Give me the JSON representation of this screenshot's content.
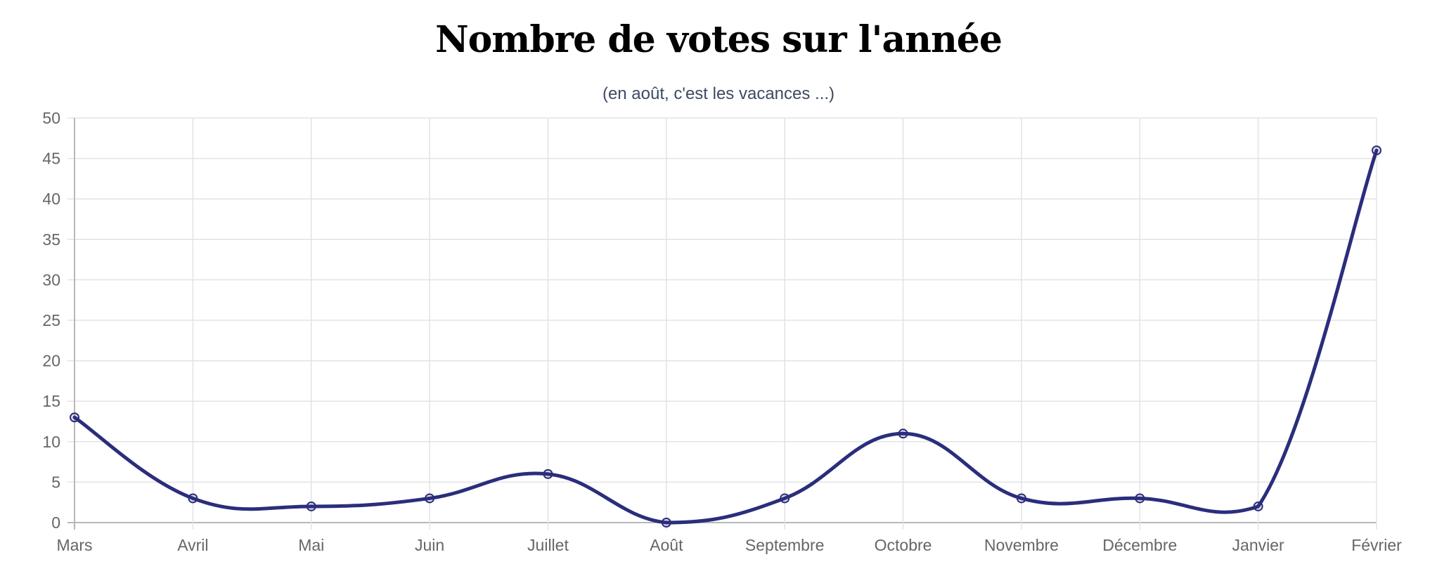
{
  "chart_data": {
    "type": "line",
    "title": "Nombre de votes sur l'année",
    "subtitle": "(en août, c'est les vacances ...)",
    "categories": [
      "Mars",
      "Avril",
      "Mai",
      "Juin",
      "Juillet",
      "Août",
      "Septembre",
      "Octobre",
      "Novembre",
      "Décembre",
      "Janvier",
      "Février"
    ],
    "series": [
      {
        "values": [
          13,
          3,
          2,
          3,
          6,
          0,
          3,
          11,
          3,
          3,
          2,
          46
        ]
      }
    ],
    "ylim": [
      0,
      50
    ],
    "yticks": [
      "0",
      "5",
      "10",
      "15",
      "20",
      "25",
      "30",
      "35",
      "40",
      "45",
      "50"
    ],
    "grid": true,
    "line_color": "#2b2d7c",
    "smooth": true
  }
}
